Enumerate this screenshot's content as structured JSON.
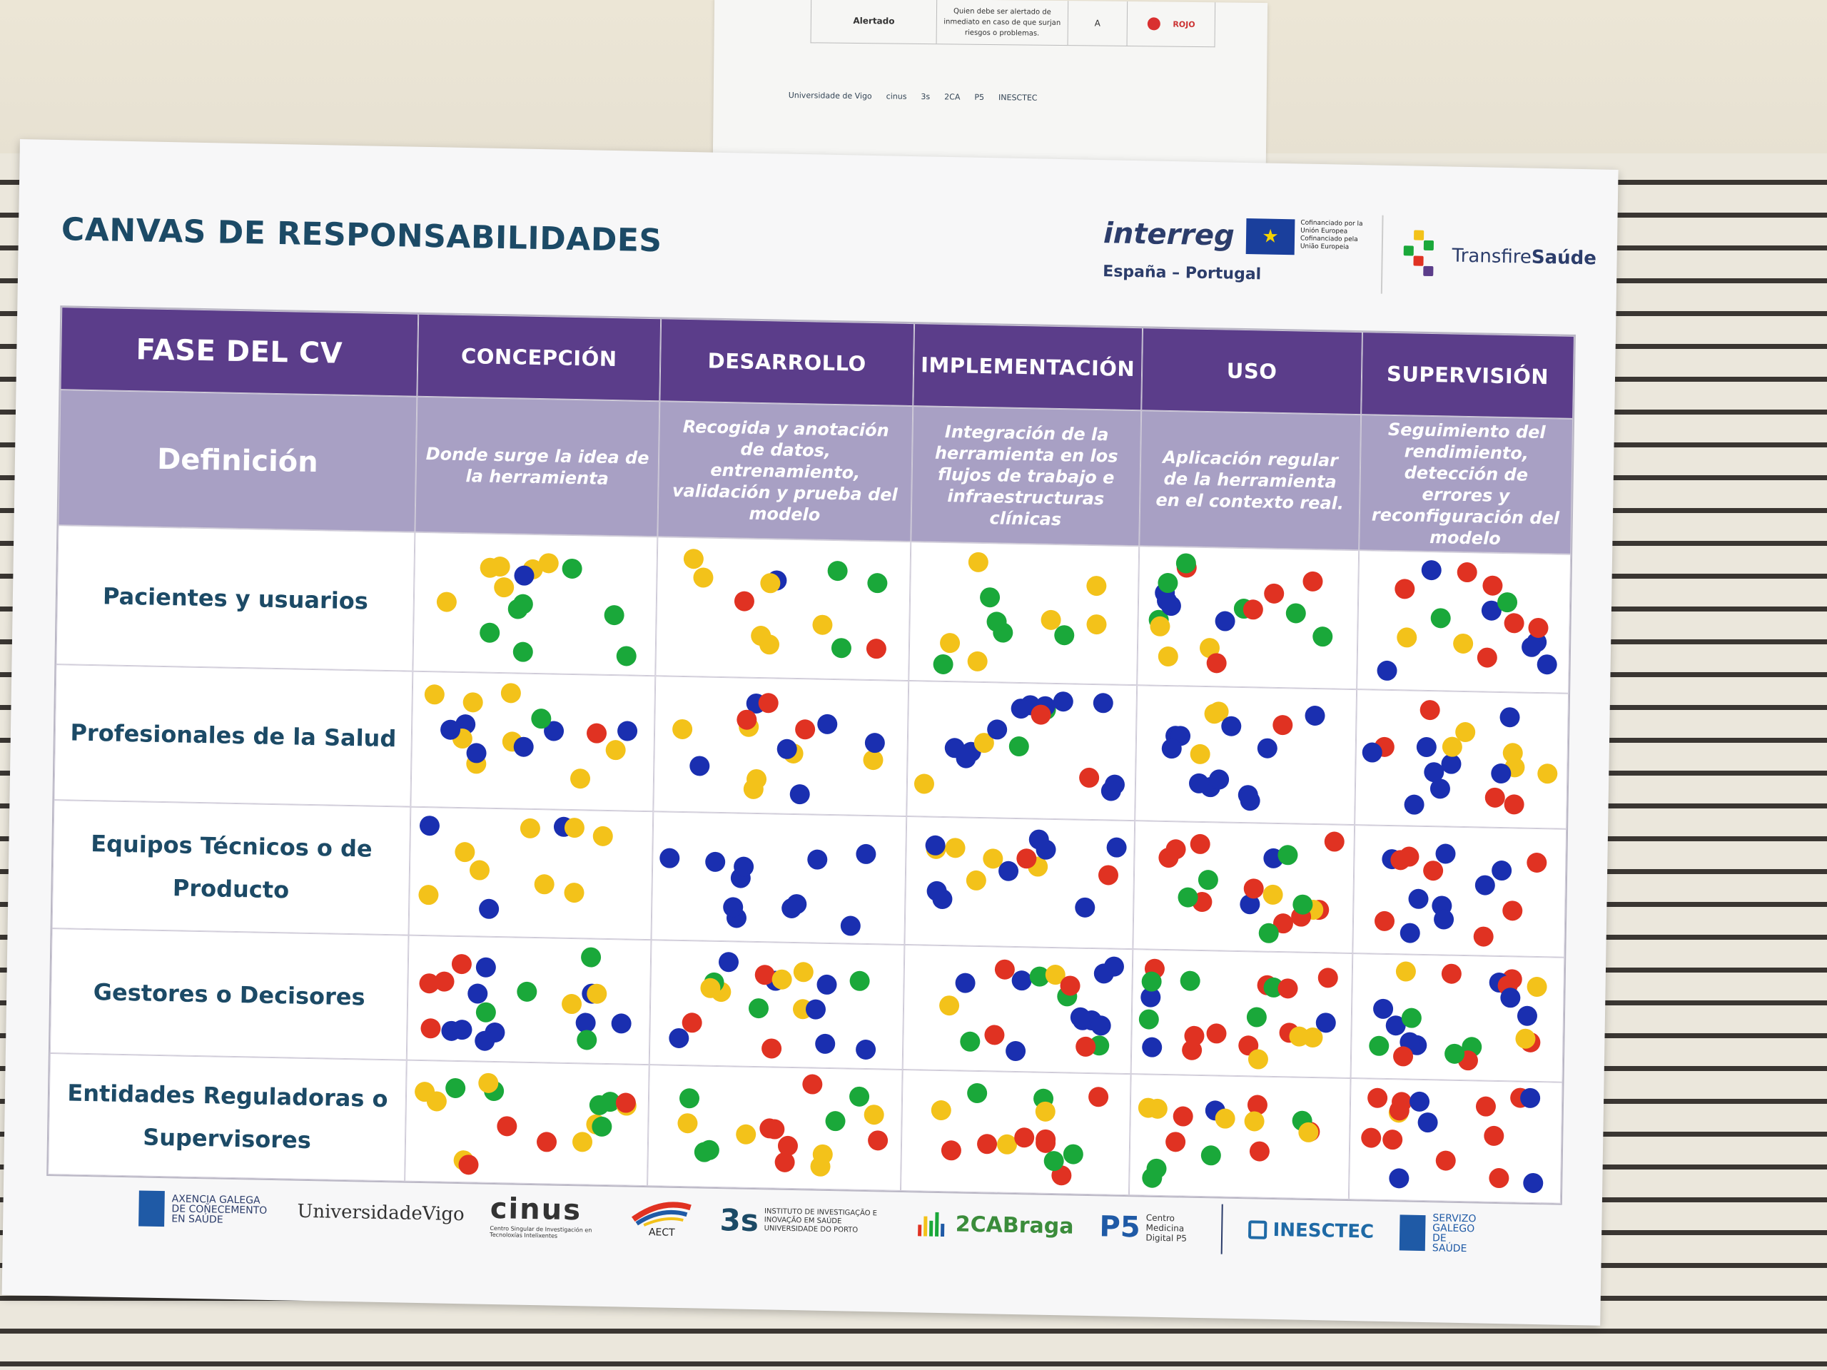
{
  "top_sheet": {
    "label": "Alertado",
    "description": "Quien debe ser alertado de inmediato en caso de que surjan riesgos o problemas.",
    "letter": "A",
    "color_name": "ROJO",
    "color": "#d93030",
    "logos": [
      "Universidade de Vigo",
      "cinus",
      "3s",
      "2CA",
      "P5",
      "INESCTEC"
    ]
  },
  "poster": {
    "title": "CANVAS DE RESPONSABILIDADES",
    "brand": {
      "name": "interreg",
      "region": "España – Portugal",
      "eu_text": "Cofinanciado por la Unión Europea Cofinanciado pela União Europeia",
      "project": "Transfire",
      "project_bold": "Saúde"
    },
    "table": {
      "corner_header": "FASE DEL CV",
      "definition_label": "Definición",
      "phases": [
        {
          "name": "CONCEPCIÓN",
          "definition": "Donde surge la idea de la herramienta"
        },
        {
          "name": "DESARROLLO",
          "definition": "Recogida y anotación de datos, entrenamiento, validación y prueba del modelo"
        },
        {
          "name": "IMPLEMENTACIÓN",
          "definition": "Integración de la herramienta en los flujos de trabajo e infraestructuras clínicas"
        },
        {
          "name": "USO",
          "definition": "Aplicación regular de la herramienta en el contexto real."
        },
        {
          "name": "SUPERVISIÓN",
          "definition": "Seguimiento del rendimiento, detección de errores y reconfiguración del modelo"
        }
      ],
      "actors": [
        "Pacientes y usuarios",
        "Profesionales de la Salud",
        "Equipos Técnicos o de Producto",
        "Gestores o Decisores",
        "Entidades Reguladoras o Supervisores"
      ]
    },
    "dot_colors": {
      "green": "#1aa83a",
      "yellow": "#f3c21a",
      "blue": "#1a2fb0",
      "red": "#e03222"
    },
    "footer_logos": {
      "acis": "AXENCIA GALEGA DE COÑECEMENTO EN SAÚDE",
      "uvigo": "UniversidadeVigo",
      "cinus": "cinus",
      "cinus_sub": "Centro Singular de Investigación en Tecnoloxías Intelixentes",
      "aect": "AECT",
      "s3": "3s",
      "s3_sub": "INSTITUTO DE INVESTIGAÇÃO E INOVAÇÃO EM SAÚDE UNIVERSIDADE DO PORTO",
      "ca2": "2CABraga",
      "p5": "P5",
      "p5_sub": "Centro Medicina Digital P5",
      "inesctec": "INESCTEC",
      "sgs": "SERVIZO GALEGO DE SAÚDE"
    }
  }
}
